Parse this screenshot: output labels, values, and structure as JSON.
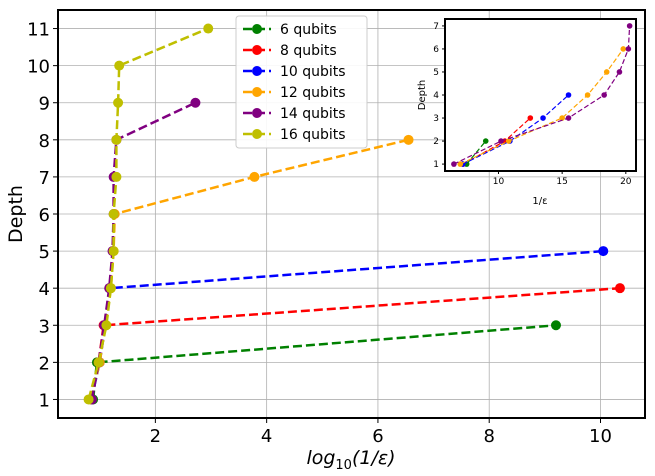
{
  "chart_data": [
    {
      "type": "line",
      "xlabel_base": "log",
      "xlabel_sub": "10",
      "xlabel_rest": "(1/ε)",
      "ylabel": "Depth",
      "xlim": [
        0.25,
        10.8
      ],
      "ylim": [
        0.5,
        11.5
      ],
      "xticks": [
        2,
        4,
        6,
        8,
        10
      ],
      "yticks": [
        1,
        2,
        3,
        4,
        5,
        6,
        7,
        8,
        9,
        10,
        11
      ],
      "grid": true,
      "legend_position": "top-center",
      "series": [
        {
          "name": "6 qubits",
          "color": "#008000",
          "x": [
            0.88,
            0.95,
            9.2
          ],
          "y": [
            1,
            2,
            3
          ]
        },
        {
          "name": "8 qubits",
          "color": "#ff0000",
          "x": [
            0.85,
            0.98,
            1.07,
            10.35
          ],
          "y": [
            1,
            2,
            3,
            4
          ]
        },
        {
          "name": "10 qubits",
          "color": "#0000ff",
          "x": [
            0.85,
            1.0,
            1.1,
            1.18,
            10.05
          ],
          "y": [
            1,
            2,
            3,
            4,
            5
          ]
        },
        {
          "name": "12 qubits",
          "color": "#ffa500",
          "x": [
            0.84,
            1.0,
            1.1,
            1.2,
            1.25,
            1.27,
            3.78,
            6.55
          ],
          "y": [
            1,
            2,
            3,
            4,
            5,
            6,
            7,
            8
          ]
        },
        {
          "name": "14 qubits",
          "color": "#800080",
          "x": [
            0.86,
            0.98,
            1.08,
            1.17,
            1.23,
            1.25,
            1.25,
            1.3,
            2.72
          ],
          "y": [
            1,
            2,
            3,
            4,
            5,
            6,
            7,
            8,
            9
          ]
        },
        {
          "name": "16 qubits",
          "color": "#bfbf00",
          "x": [
            0.8,
            0.98,
            1.12,
            1.2,
            1.25,
            1.25,
            1.3,
            1.3,
            1.33,
            1.35,
            2.95
          ],
          "y": [
            1,
            2,
            3,
            4,
            5,
            6,
            7,
            8,
            9,
            10,
            11
          ]
        }
      ]
    },
    {
      "type": "line",
      "xlabel": "1/ε",
      "ylabel": "Depth",
      "xlim": [
        5.8,
        20.8
      ],
      "ylim": [
        0.7,
        7.3
      ],
      "xticks": [
        10,
        15,
        20
      ],
      "yticks": [
        1,
        2,
        3,
        4,
        5,
        6,
        7
      ],
      "grid": false,
      "series": [
        {
          "color": "#008000",
          "x": [
            7.5,
            9.0
          ],
          "y": [
            1,
            2
          ]
        },
        {
          "color": "#ff0000",
          "x": [
            7.2,
            10.5,
            12.5
          ],
          "y": [
            1,
            2,
            3
          ]
        },
        {
          "color": "#0000ff",
          "x": [
            7.2,
            10.9,
            13.5,
            15.5
          ],
          "y": [
            1,
            2,
            3,
            4
          ]
        },
        {
          "color": "#ffa500",
          "x": [
            7.0,
            10.8,
            15.0,
            17.0,
            18.5,
            19.8
          ],
          "y": [
            1,
            2,
            3,
            4,
            5,
            6
          ]
        },
        {
          "color": "#800080",
          "x": [
            6.5,
            10.2,
            15.5,
            18.3,
            19.5,
            20.2,
            20.3
          ],
          "y": [
            1,
            2,
            3,
            4,
            5,
            6,
            7
          ]
        }
      ]
    }
  ]
}
